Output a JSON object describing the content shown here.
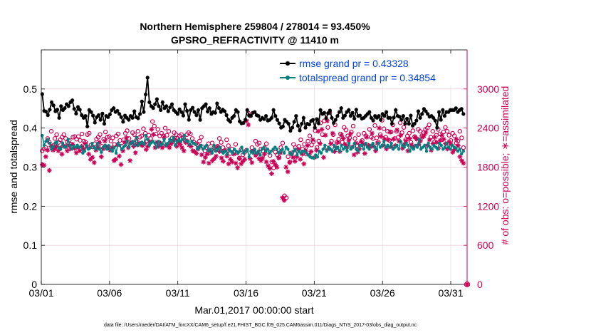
{
  "chart_data": {
    "type": "line",
    "title": "Northern Hemisphere 259804 / 278014 = 93.450%",
    "subtitle": "GPSRO_REFRACTIVITY @ 11410 m",
    "xlabel": "Mar.01,2017 00:00:00 start",
    "ylabel": "rmse and totalspread",
    "y2label": "# of obs: o=possible; ∗=assimilated",
    "footnote": "data file: /Users/raeder/DAI/ATM_forcXX/CAM6_setup/f.e21.FHIST_BGC.f09_025.CAM6assim.011/Diags_NTrS_2017-03/obs_diag_output.nc",
    "x_ticks": [
      "03/01",
      "03/06",
      "03/11",
      "03/16",
      "03/21",
      "03/26",
      "03/31"
    ],
    "x_tick_days": [
      1,
      6,
      11,
      16,
      21,
      26,
      31
    ],
    "xlim_days": [
      1,
      32.2
    ],
    "ylim": [
      0,
      0.6
    ],
    "y_ticks": [
      "0",
      "0.1",
      "0.2",
      "0.3",
      "0.4",
      "0.5"
    ],
    "y2lim": [
      0,
      3600
    ],
    "y2_ticks": [
      "0",
      "600",
      "1200",
      "1800",
      "2400",
      "3000"
    ],
    "grid": true,
    "legend_position": "top-right",
    "colors": {
      "rmse": "#000000",
      "totalspread": "#008080",
      "obs": "#cc0055",
      "legend_text": "#0044dd"
    },
    "series": [
      {
        "name": "rmse grand pr = 0.43328",
        "axis": "left",
        "marker": "star",
        "values": [
          0.487,
          0.444,
          0.442,
          0.433,
          0.447,
          0.466,
          0.458,
          0.443,
          0.447,
          0.426,
          0.456,
          0.446,
          0.451,
          0.461,
          0.456,
          0.466,
          0.471,
          0.449,
          0.437,
          0.454,
          0.447,
          0.433,
          0.426,
          0.431,
          0.404,
          0.446,
          0.441,
          0.432,
          0.414,
          0.428,
          0.433,
          0.421,
          0.437,
          0.411,
          0.431,
          0.428,
          0.435,
          0.446,
          0.451,
          0.441,
          0.444,
          0.436,
          0.428,
          0.416,
          0.432,
          0.426,
          0.421,
          0.431,
          0.426,
          0.443,
          0.428,
          0.425,
          0.436,
          0.468,
          0.441,
          0.486,
          0.529,
          0.466,
          0.456,
          0.451,
          0.461,
          0.474,
          0.456,
          0.446,
          0.466,
          0.451,
          0.456,
          0.443,
          0.453,
          0.461,
          0.446,
          0.441,
          0.436,
          0.448,
          0.441,
          0.432,
          0.461,
          0.444,
          0.421,
          0.446,
          0.452,
          0.441,
          0.433,
          0.446,
          0.421,
          0.451,
          0.456,
          0.461,
          0.442,
          0.451,
          0.436,
          0.441,
          0.439,
          0.463,
          0.451,
          0.441,
          0.447,
          0.443,
          0.433,
          0.421,
          0.416,
          0.426,
          0.431,
          0.446,
          0.441,
          0.417,
          0.412,
          0.413,
          0.421,
          0.446,
          0.432,
          0.431,
          0.439,
          0.441,
          0.433,
          0.431,
          0.421,
          0.426,
          0.423,
          0.431,
          0.419,
          0.421,
          0.426,
          0.446,
          0.431,
          0.421,
          0.412,
          0.401,
          0.404,
          0.421,
          0.416,
          0.411,
          0.393,
          0.401,
          0.416,
          0.431,
          0.406,
          0.394,
          0.411,
          0.426,
          0.401,
          0.411,
          0.409,
          0.418,
          0.421,
          0.401,
          0.423,
          0.412,
          0.446,
          0.436,
          0.439,
          0.425,
          0.438,
          0.445,
          0.426,
          0.413,
          0.421,
          0.431,
          0.441,
          0.451,
          0.426,
          0.432,
          0.441,
          0.446,
          0.431,
          0.439,
          0.424,
          0.447,
          0.431,
          0.432,
          0.424,
          0.426,
          0.431,
          0.436,
          0.441,
          0.426,
          0.419,
          0.431,
          0.426,
          0.431,
          0.421,
          0.436,
          0.431,
          0.441,
          0.426,
          0.426,
          0.411,
          0.427,
          0.446,
          0.431,
          0.429,
          0.421,
          0.431,
          0.411,
          0.424,
          0.411,
          0.432,
          0.406,
          0.411,
          0.419,
          0.443,
          0.426,
          0.436,
          0.449,
          0.443,
          0.436,
          0.429,
          0.431,
          0.426,
          0.419,
          0.401,
          0.441,
          0.421,
          0.446,
          0.431,
          0.441,
          0.441,
          0.446,
          0.446,
          0.446,
          0.451,
          0.441,
          0.446,
          0.449,
          0.436
        ]
      },
      {
        "name": "totalspread grand pr = 0.34854",
        "axis": "left",
        "marker": "dot",
        "values": [
          0.381,
          0.356,
          0.366,
          0.371,
          0.361,
          0.346,
          0.352,
          0.362,
          0.365,
          0.349,
          0.346,
          0.362,
          0.351,
          0.352,
          0.371,
          0.356,
          0.347,
          0.354,
          0.351,
          0.356,
          0.351,
          0.352,
          0.336,
          0.341,
          0.356,
          0.346,
          0.349,
          0.361,
          0.351,
          0.346,
          0.361,
          0.346,
          0.338,
          0.351,
          0.356,
          0.346,
          0.355,
          0.346,
          0.341,
          0.351,
          0.336,
          0.361,
          0.356,
          0.346,
          0.351,
          0.356,
          0.366,
          0.351,
          0.361,
          0.366,
          0.356,
          0.376,
          0.356,
          0.361,
          0.364,
          0.359,
          0.381,
          0.371,
          0.356,
          0.362,
          0.366,
          0.361,
          0.351,
          0.366,
          0.356,
          0.359,
          0.371,
          0.356,
          0.361,
          0.371,
          0.366,
          0.376,
          0.356,
          0.366,
          0.371,
          0.366,
          0.371,
          0.381,
          0.366,
          0.366,
          0.358,
          0.366,
          0.361,
          0.358,
          0.346,
          0.351,
          0.356,
          0.346,
          0.351,
          0.356,
          0.342,
          0.346,
          0.336,
          0.356,
          0.341,
          0.346,
          0.351,
          0.341,
          0.336,
          0.341,
          0.333,
          0.346,
          0.341,
          0.336,
          0.346,
          0.341,
          0.336,
          0.341,
          0.351,
          0.336,
          0.341,
          0.345,
          0.326,
          0.341,
          0.336,
          0.346,
          0.336,
          0.341,
          0.331,
          0.346,
          0.351,
          0.341,
          0.346,
          0.336,
          0.341,
          0.346,
          0.351,
          0.346,
          0.336,
          0.341,
          0.346,
          0.336,
          0.351,
          0.346,
          0.336,
          0.332,
          0.341,
          0.346,
          0.331,
          0.341,
          0.336,
          0.341,
          0.341,
          0.336,
          0.331,
          0.326,
          0.324,
          0.323,
          0.331,
          0.326,
          0.341,
          0.336,
          0.346,
          0.356,
          0.341,
          0.351,
          0.346,
          0.341,
          0.356,
          0.346,
          0.351,
          0.341,
          0.356,
          0.346,
          0.351,
          0.341,
          0.361,
          0.346,
          0.351,
          0.361,
          0.346,
          0.341,
          0.356,
          0.356,
          0.346,
          0.361,
          0.351,
          0.346,
          0.356,
          0.361,
          0.351,
          0.346,
          0.361,
          0.351,
          0.356,
          0.366,
          0.351,
          0.356,
          0.351,
          0.361,
          0.346,
          0.351,
          0.356,
          0.346,
          0.366,
          0.356,
          0.351,
          0.361,
          0.356,
          0.341,
          0.351,
          0.346,
          0.356,
          0.351,
          0.371,
          0.346,
          0.351,
          0.356,
          0.341,
          0.361,
          0.351,
          0.346,
          0.356,
          0.351,
          0.346,
          0.361,
          0.356,
          0.346,
          0.351,
          0.361,
          0.351,
          0.346,
          0.356,
          0.351,
          0.349,
          0.341,
          0.346,
          0.334,
          0.341
        ]
      },
      {
        "name": "possible",
        "axis": "right",
        "marker": "circle",
        "values": [
          2050,
          2080,
          2100,
          2240,
          2180,
          2350,
          2130,
          2240,
          2300,
          2180,
          2220,
          2260,
          2300,
          2240,
          2180,
          2210,
          2150,
          2260,
          2270,
          2230,
          2270,
          2210,
          2310,
          2200,
          2180,
          2300,
          2320,
          2140,
          2110,
          2160,
          2230,
          2260,
          2300,
          2120,
          2230,
          2340,
          2260,
          2270,
          2200,
          2250,
          2150,
          2280,
          2310,
          2210,
          2120,
          2220,
          2320,
          2360,
          2240,
          2170,
          2330,
          2300,
          2210,
          2350,
          2260,
          2280,
          2390,
          2320,
          2200,
          2290,
          2240,
          2500,
          2430,
          2310,
          2380,
          2280,
          2320,
          2280,
          2400,
          2290,
          2350,
          2170,
          2250,
          2330,
          2300,
          2240,
          2280,
          2300,
          2240,
          2210,
          2300,
          2330,
          2310,
          2240,
          2180,
          2160,
          2140,
          2200,
          2260,
          2110,
          2050,
          2100,
          2160,
          2020,
          2170,
          2100,
          2060,
          2120,
          2240,
          2180,
          2100,
          2050,
          2220,
          2130,
          2010,
          2080,
          2030,
          2150,
          2020,
          1940,
          2070,
          1990,
          2030,
          2060,
          2630,
          2590,
          2100,
          2040,
          2200,
          2150,
          2170,
          2080,
          2050,
          2100,
          2160,
          2040,
          1980,
          1880,
          1790,
          2030,
          1990,
          1950,
          2100,
          2170,
          1360,
          1330,
          1960,
          1880,
          2020,
          2150,
          2100,
          2050,
          2120,
          2220,
          2080,
          2150,
          2000,
          2200,
          2280,
          2140,
          2190,
          2360,
          2100,
          2200,
          2480,
          2300,
          2510,
          2100,
          2410,
          2640,
          2200,
          2300,
          2450,
          2180,
          2230,
          2310,
          2180,
          2410,
          2370,
          2280,
          2250,
          2340,
          2430,
          2240,
          2130,
          2300,
          2160,
          2210,
          2320,
          2280,
          2140,
          2380,
          2260,
          2240,
          2440,
          2250,
          2180,
          2300,
          2520,
          2390,
          2260,
          2350,
          2210,
          2340,
          2450,
          2240,
          2350,
          2260,
          2480,
          2330,
          2410,
          2220,
          2280,
          2320,
          2180,
          2360,
          2270,
          2240,
          2380,
          2350,
          2280,
          2330,
          2380,
          2400,
          2450,
          2260,
          2350,
          2190,
          2290,
          2380,
          2310,
          2220,
          2340,
          2410,
          2350,
          2290,
          2210,
          2320,
          2280,
          2170,
          2200,
          2350,
          2250,
          2100
        ]
      },
      {
        "name": "assimilated",
        "axis": "right",
        "marker": "asterisk",
        "values": [
          1840,
          1830,
          1960,
          2060,
          1750,
          2120,
          2060,
          2080,
          2120,
          2050,
          2100,
          2000,
          2130,
          2110,
          2050,
          2130,
          2080,
          2150,
          2090,
          2020,
          2100,
          2050,
          2120,
          2080,
          2160,
          2110,
          2000,
          1920,
          1950,
          1870,
          2060,
          2110,
          2180,
          1960,
          2080,
          2200,
          2110,
          2100,
          2060,
          2100,
          1900,
          1920,
          2140,
          1970,
          1840,
          2050,
          2180,
          2250,
          2100,
          1900,
          2180,
          2120,
          2020,
          2140,
          2170,
          2150,
          2130,
          2160,
          2070,
          2120,
          2180,
          2380,
          2300,
          2100,
          2180,
          2120,
          2170,
          2100,
          2260,
          2130,
          2150,
          2100,
          2160,
          2200,
          2230,
          2120,
          2180,
          2150,
          2100,
          2050,
          2180,
          2200,
          2140,
          2120,
          2050,
          2040,
          2010,
          2080,
          2120,
          1990,
          1880,
          1950,
          2000,
          1860,
          2040,
          1900,
          1930,
          1970,
          2110,
          2040,
          1940,
          1890,
          2060,
          1970,
          1850,
          1920,
          1880,
          2000,
          1860,
          1790,
          1930,
          1850,
          1890,
          1920,
          2510,
          2450,
          1930,
          1870,
          2050,
          1980,
          2010,
          1930,
          1900,
          1940,
          2000,
          1880,
          1820,
          1780,
          1700,
          1890,
          1840,
          1800,
          1940,
          2020,
          1330,
          1290,
          1800,
          1730,
          1870,
          2000,
          1950,
          1890,
          1960,
          2070,
          1920,
          2000,
          1850,
          2060,
          2130,
          1990,
          2040,
          2220,
          1950,
          2060,
          2350,
          2160,
          2380,
          1950,
          2290,
          2510,
          2080,
          2160,
          2320,
          2040,
          2100,
          2180,
          2040,
          2290,
          2240,
          2150,
          2110,
          2210,
          2310,
          2110,
          1990,
          2170,
          2030,
          2080,
          2190,
          2150,
          2010,
          2260,
          2130,
          2110,
          2320,
          2120,
          2050,
          2170,
          2400,
          2270,
          2130,
          2230,
          2080,
          2220,
          2340,
          2110,
          2230,
          2130,
          2370,
          2200,
          2290,
          2090,
          2150,
          2200,
          2050,
          2240,
          2140,
          2110,
          2260,
          2230,
          2150,
          2200,
          2260,
          2280,
          2330,
          2130,
          2220,
          2060,
          2160,
          2260,
          2180,
          2090,
          2210,
          2290,
          2230,
          2160,
          2080,
          2190,
          2150,
          2030,
          2070,
          2230,
          2130,
          1960,
          1900,
          1860
        ]
      }
    ]
  }
}
